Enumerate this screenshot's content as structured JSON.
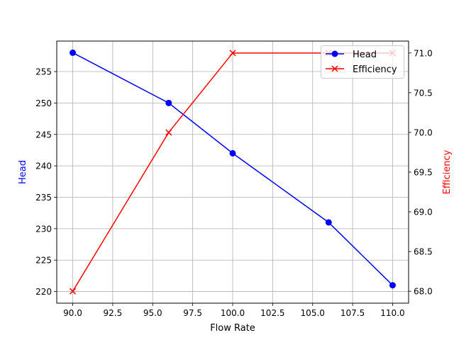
{
  "chart_data": {
    "type": "line",
    "title": "",
    "xlabel": "Flow Rate",
    "ylabel_left": "Head",
    "ylabel_right": "Efficiency",
    "x": [
      90,
      96,
      100,
      106,
      110
    ],
    "xlim": [
      89.0,
      111.0
    ],
    "xticks": [
      90.0,
      92.5,
      95.0,
      97.5,
      100.0,
      102.5,
      105.0,
      107.5,
      110.0
    ],
    "xtick_labels": [
      "90.0",
      "92.5",
      "95.0",
      "97.5",
      "100.0",
      "102.5",
      "105.0",
      "107.5",
      "110.0"
    ],
    "ylim_left": [
      218.15,
      259.85
    ],
    "yticks_left": [
      220,
      225,
      230,
      235,
      240,
      245,
      250,
      255
    ],
    "ytick_labels_left": [
      "220",
      "225",
      "230",
      "235",
      "240",
      "245",
      "250",
      "255"
    ],
    "ylim_right": [
      67.85,
      71.15
    ],
    "yticks_right": [
      68.0,
      68.5,
      69.0,
      69.5,
      70.0,
      70.5,
      71.0
    ],
    "ytick_labels_right": [
      "68.0",
      "68.5",
      "69.0",
      "69.5",
      "70.0",
      "70.5",
      "71.0"
    ],
    "grid": true,
    "legend_position": "upper right",
    "series": [
      {
        "name": "Head",
        "axis": "left",
        "color": "#0000ff",
        "marker": "o",
        "values": [
          258,
          250,
          242,
          231,
          221
        ]
      },
      {
        "name": "Efficiency",
        "axis": "right",
        "color": "#ff0000",
        "marker": "x",
        "values": [
          68,
          70,
          71,
          71,
          71
        ]
      }
    ]
  },
  "colors": {
    "head": "#0000ff",
    "efficiency": "#ff0000",
    "grid": "#b0b0b0",
    "axes": "#000000"
  }
}
